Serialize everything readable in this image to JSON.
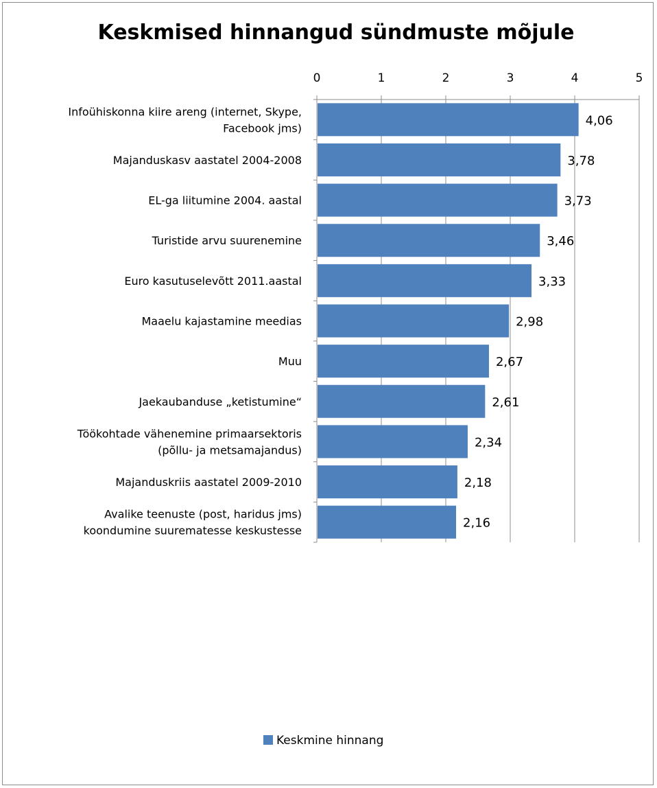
{
  "chart_data": {
    "type": "bar",
    "orientation": "horizontal",
    "title": "Keskmised hinnangud sündmuste mõjule",
    "categories": [
      [
        "Infoühiskonna kiire areng (internet, Skype,",
        "Facebook  jms)"
      ],
      [
        "Majanduskasv aastatel 2004-2008"
      ],
      [
        "EL-ga liitumine  2004. aastal"
      ],
      [
        "Turistide arvu suurenemine"
      ],
      [
        "Euro kasutuselevõtt 2011.aastal"
      ],
      [
        "Maaelu kajastamine meedias"
      ],
      [
        "Muu"
      ],
      [
        "Jaekaubanduse „ketistumine“"
      ],
      [
        "Töökohtade vähenemine primaarsektoris",
        "(põllu- ja metsamajandus)"
      ],
      [
        "Majanduskriis aastatel 2009-2010"
      ],
      [
        "Avalike teenuste (post, haridus jms)",
        "koondumine suurematesse keskustesse"
      ]
    ],
    "series": [
      {
        "name": "Keskmine hinnang",
        "values": [
          4.06,
          3.78,
          3.73,
          3.46,
          3.33,
          2.98,
          2.67,
          2.61,
          2.34,
          2.18,
          2.16
        ],
        "labels": [
          "4,06",
          "3,78",
          "3,73",
          "3,46",
          "3,33",
          "2,98",
          "2,67",
          "2,61",
          "2,34",
          "2,18",
          "2,16"
        ],
        "color": "#4f81bd"
      }
    ],
    "xlim": [
      0,
      5
    ],
    "ticks": [
      "0",
      "1",
      "2",
      "3",
      "4",
      "5"
    ],
    "grid": true,
    "axis_position": "top",
    "legend_position": "bottom"
  }
}
